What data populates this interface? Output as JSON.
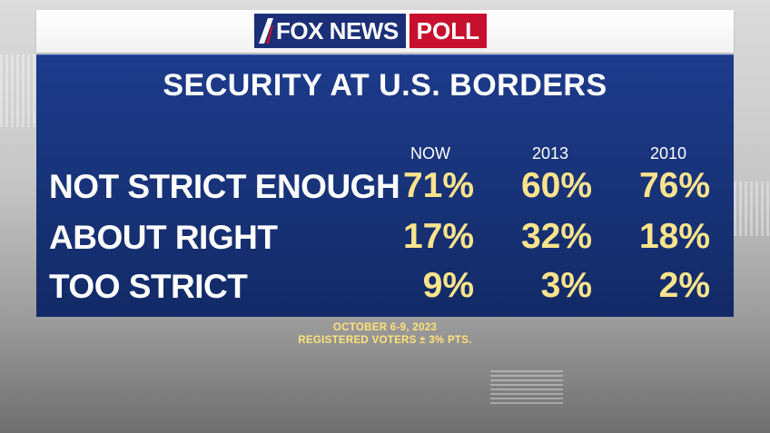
{
  "header": {
    "logo_main": "FOX NEWS",
    "logo_poll": "POLL"
  },
  "chart_data": {
    "type": "table",
    "title": "SECURITY AT U.S. BORDERS",
    "columns": [
      "NOW",
      "2013",
      "2010"
    ],
    "rows": [
      {
        "label": "NOT STRICT ENOUGH",
        "values": [
          "71%",
          "60%",
          "76%"
        ]
      },
      {
        "label": "ABOUT RIGHT",
        "values": [
          "17%",
          "32%",
          "18%"
        ]
      },
      {
        "label": "TOO STRICT",
        "values": [
          "9%",
          "3%",
          "2%"
        ]
      }
    ]
  },
  "footnote": {
    "line1": "OCTOBER 6-9, 2023",
    "line2": "REGISTERED VOTERS ± 3% PTS."
  },
  "colors": {
    "panel": "#173277",
    "value_text": "#fde48c",
    "footnote_text": "#ffe27a",
    "poll_red": "#c8102e"
  }
}
